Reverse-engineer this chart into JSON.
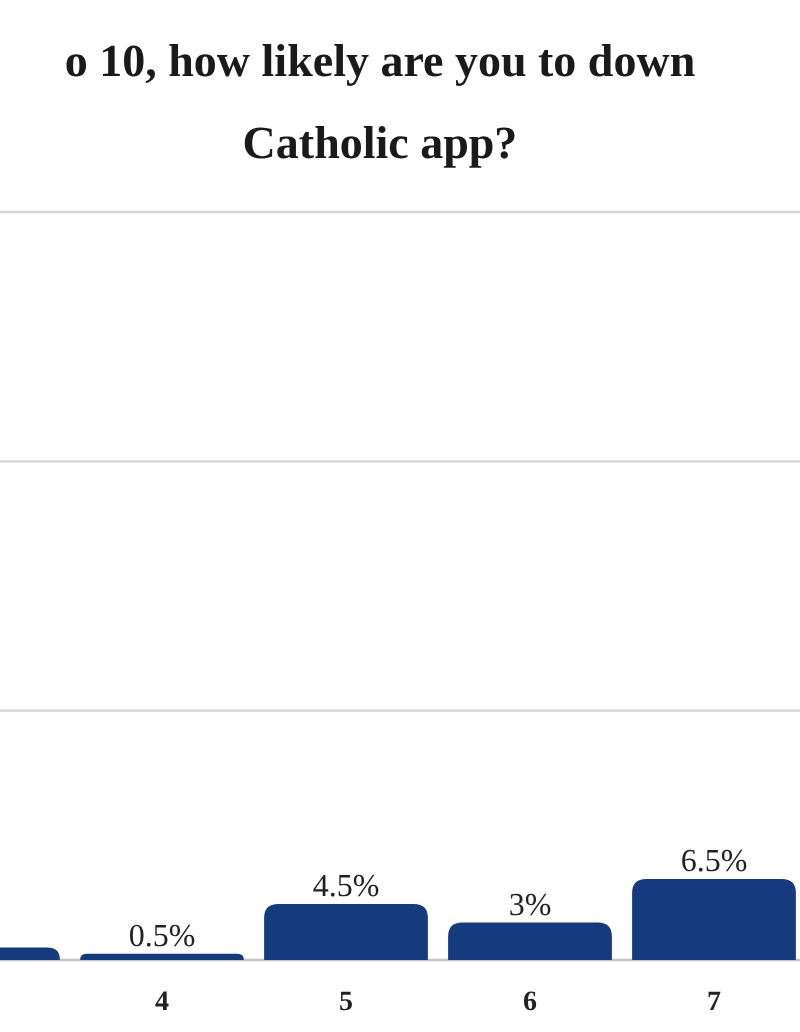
{
  "chart_data": {
    "type": "bar",
    "title": "o 10, how likely are you to down\nCatholic app?",
    "categories": [
      null,
      "4",
      "5",
      "6",
      "7"
    ],
    "values": [
      1,
      0.5,
      4.5,
      3,
      6.5
    ],
    "color": "#163a7e",
    "value_labels": [
      null,
      "0.5%",
      "4.5%",
      "3%",
      "6.5%"
    ],
    "ylim": [
      0,
      60
    ],
    "yticks": [
      {
        "value": 0,
        "label": null
      },
      {
        "value": 20,
        "label": null
      },
      {
        "value": 40,
        "label": null
      },
      {
        "value": 60,
        "label": null
      }
    ],
    "grid": "y",
    "tick_labels": "x"
  }
}
